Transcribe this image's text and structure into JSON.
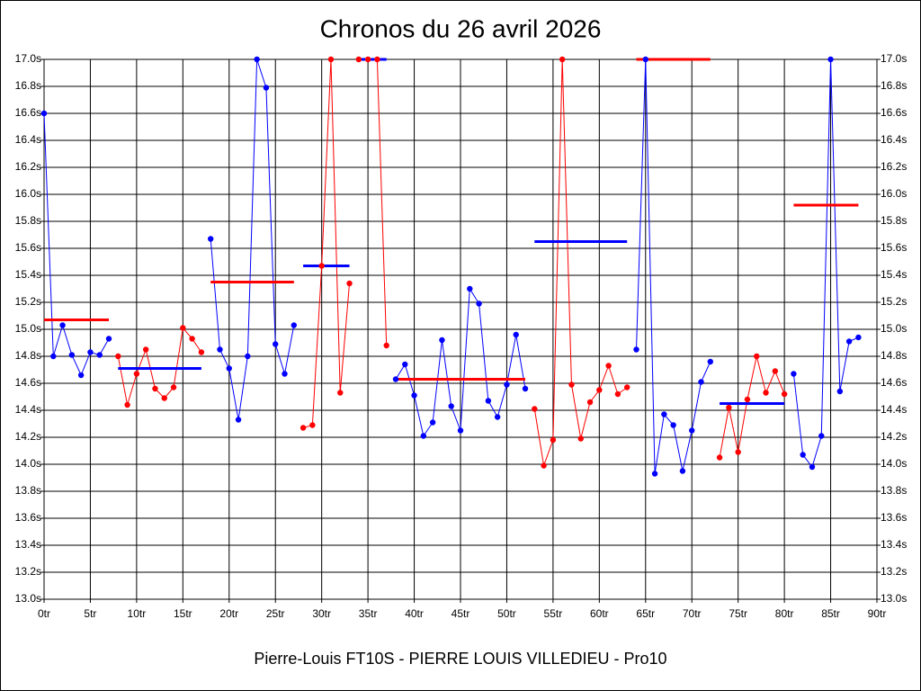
{
  "chart_data": {
    "type": "line",
    "title": "Chronos du 26 avril 2026",
    "x_label": "Pierre-Louis FT10S - PIERRE LOUIS VILLEDIEU - Pro10",
    "xlim": [
      0,
      90
    ],
    "xticks": [
      {
        "value": 0,
        "label": "0tr"
      },
      {
        "value": 5,
        "label": "5tr"
      },
      {
        "value": 10,
        "label": "10tr"
      },
      {
        "value": 15,
        "label": "15tr"
      },
      {
        "value": 20,
        "label": "20tr"
      },
      {
        "value": 25,
        "label": "25tr"
      },
      {
        "value": 30,
        "label": "30tr"
      },
      {
        "value": 35,
        "label": "35tr"
      },
      {
        "value": 40,
        "label": "40tr"
      },
      {
        "value": 45,
        "label": "45tr"
      },
      {
        "value": 50,
        "label": "50tr"
      },
      {
        "value": 55,
        "label": "55tr"
      },
      {
        "value": 60,
        "label": "60tr"
      },
      {
        "value": 65,
        "label": "65tr"
      },
      {
        "value": 70,
        "label": "70tr"
      },
      {
        "value": 75,
        "label": "75tr"
      },
      {
        "value": 80,
        "label": "80tr"
      },
      {
        "value": 85,
        "label": "85tr"
      },
      {
        "value": 90,
        "label": "90tr"
      }
    ],
    "ylim": [
      13.0,
      17.0
    ],
    "yticks": [
      {
        "value": 13.0,
        "label": "13.0s"
      },
      {
        "value": 13.2,
        "label": "13.2s"
      },
      {
        "value": 13.4,
        "label": "13.4s"
      },
      {
        "value": 13.6,
        "label": "13.6s"
      },
      {
        "value": 13.8,
        "label": "13.8s"
      },
      {
        "value": 14.0,
        "label": "14.0s"
      },
      {
        "value": 14.2,
        "label": "14.2s"
      },
      {
        "value": 14.4,
        "label": "14.4s"
      },
      {
        "value": 14.6,
        "label": "14.6s"
      },
      {
        "value": 14.8,
        "label": "14.8s"
      },
      {
        "value": 15.0,
        "label": "15.0s"
      },
      {
        "value": 15.2,
        "label": "15.2s"
      },
      {
        "value": 15.4,
        "label": "15.4s"
      },
      {
        "value": 15.6,
        "label": "15.6s"
      },
      {
        "value": 15.8,
        "label": "15.8s"
      },
      {
        "value": 16.0,
        "label": "16.0s"
      },
      {
        "value": 16.2,
        "label": "16.2s"
      },
      {
        "value": 16.4,
        "label": "16.4s"
      },
      {
        "value": 16.6,
        "label": "16.6s"
      },
      {
        "value": 16.8,
        "label": "16.8s"
      },
      {
        "value": 17.0,
        "label": "17.0s"
      }
    ],
    "grid": true,
    "series": [
      {
        "color": "#0000ff",
        "average_color": "#ff0000",
        "average": 15.07,
        "x": [
          0,
          1,
          2,
          3,
          4,
          5,
          6,
          7
        ],
        "values": [
          16.6,
          14.8,
          15.03,
          14.81,
          14.66,
          14.83,
          14.81,
          14.93
        ]
      },
      {
        "color": "#ff0000",
        "average_color": "#0000ff",
        "average": 14.71,
        "x": [
          8,
          9,
          10,
          11,
          12,
          13,
          14,
          15,
          16,
          17
        ],
        "values": [
          14.8,
          14.44,
          14.67,
          14.85,
          14.56,
          14.49,
          14.57,
          15.01,
          14.93,
          14.83
        ]
      },
      {
        "color": "#0000ff",
        "average_color": "#ff0000",
        "average": 15.35,
        "x": [
          18,
          19,
          20,
          21,
          22,
          23,
          24,
          25,
          26,
          27
        ],
        "values": [
          15.67,
          14.85,
          14.71,
          14.33,
          14.8,
          17.0,
          16.79,
          14.89,
          14.67,
          15.03
        ]
      },
      {
        "color": "#ff0000",
        "average_color": "#0000ff",
        "average": 15.47,
        "x": [
          28,
          29,
          30,
          31,
          32,
          33
        ],
        "values": [
          14.27,
          14.29,
          15.47,
          17.0,
          14.53,
          15.34
        ]
      },
      {
        "color": "#ff0000",
        "average_color": "#0000ff",
        "average": 17.0,
        "x": [
          34,
          35,
          36,
          37
        ],
        "values": [
          17.0,
          17.0,
          17.0,
          14.88
        ]
      },
      {
        "color": "#0000ff",
        "average_color": "#ff0000",
        "average": 14.63,
        "x": [
          38,
          39,
          40,
          41,
          42,
          43,
          44,
          45,
          46,
          47,
          48,
          49,
          50,
          51,
          52
        ],
        "values": [
          14.63,
          14.74,
          14.51,
          14.21,
          14.31,
          14.92,
          14.43,
          14.25,
          15.3,
          15.19,
          14.47,
          14.35,
          14.59,
          14.96,
          14.56
        ]
      },
      {
        "color": "#ff0000",
        "average_color": "#0000ff",
        "average": 15.65,
        "x": [
          53,
          54,
          55,
          56,
          57,
          58,
          59,
          60,
          61,
          62,
          63
        ],
        "values": [
          14.41,
          13.99,
          14.18,
          17.0,
          14.59,
          14.19,
          14.46,
          14.55,
          14.73,
          14.52,
          14.57
        ]
      },
      {
        "color": "#0000ff",
        "average_color": "#ff0000",
        "average": 17.0,
        "x": [
          64,
          65,
          66,
          67,
          68,
          69,
          70,
          71,
          72
        ],
        "values": [
          14.85,
          17.0,
          13.93,
          14.37,
          14.29,
          13.95,
          14.25,
          14.61,
          14.76
        ]
      },
      {
        "color": "#ff0000",
        "average_color": "#0000ff",
        "average": 14.45,
        "x": [
          73,
          74,
          75,
          76,
          77,
          78,
          79,
          80
        ],
        "values": [
          14.05,
          14.42,
          14.09,
          14.48,
          14.8,
          14.53,
          14.69,
          14.52
        ]
      },
      {
        "color": "#0000ff",
        "average_color": "#ff0000",
        "average": 15.92,
        "x": [
          81,
          82,
          83,
          84,
          85,
          86,
          87,
          88
        ],
        "values": [
          14.67,
          14.07,
          13.98,
          14.21,
          17.0,
          14.54,
          14.91,
          14.94
        ]
      }
    ]
  }
}
